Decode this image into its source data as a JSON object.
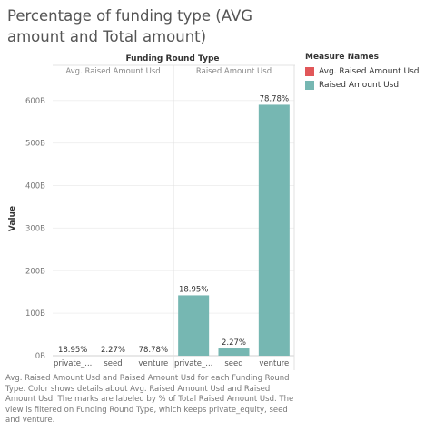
{
  "title": "Percentage of funding type (AVG amount and Total amount)",
  "header_title": "Funding Round Type",
  "legend": {
    "title": "Measure Names",
    "items": [
      {
        "label": "Avg. Raised Amount Usd",
        "color": "#e15759"
      },
      {
        "label": "Raised Amount Usd",
        "color": "#76b7b2"
      }
    ]
  },
  "caption": "Avg. Raised Amount Usd and Raised Amount Usd for each Funding Round Type.  Color shows details about Avg. Raised Amount Usd and Raised Amount Usd.  The marks are labeled by % of Total Raised Amount Usd. The view is filtered on Funding Round Type, which keeps private_equity, seed and venture.",
  "chart_data": {
    "type": "bar",
    "ylabel": "Value",
    "ylim": [
      0,
      640
    ],
    "yticks": [
      0,
      100,
      200,
      300,
      400,
      500,
      600
    ],
    "ytick_labels": [
      "0B",
      "100B",
      "200B",
      "300B",
      "400B",
      "500B",
      "600B"
    ],
    "categories": [
      "private_...",
      "seed",
      "venture"
    ],
    "panels": [
      {
        "name": "Avg. Raised Amount Usd",
        "color": "#e15759",
        "values": [
          0.0,
          0.0,
          0.0
        ],
        "labels": [
          "18.95%",
          "2.27%",
          "78.78%"
        ]
      },
      {
        "name": "Raised Amount Usd",
        "color": "#76b7b2",
        "values": [
          142,
          17,
          590
        ],
        "labels": [
          "18.95%",
          "2.27%",
          "78.78%"
        ]
      }
    ]
  }
}
